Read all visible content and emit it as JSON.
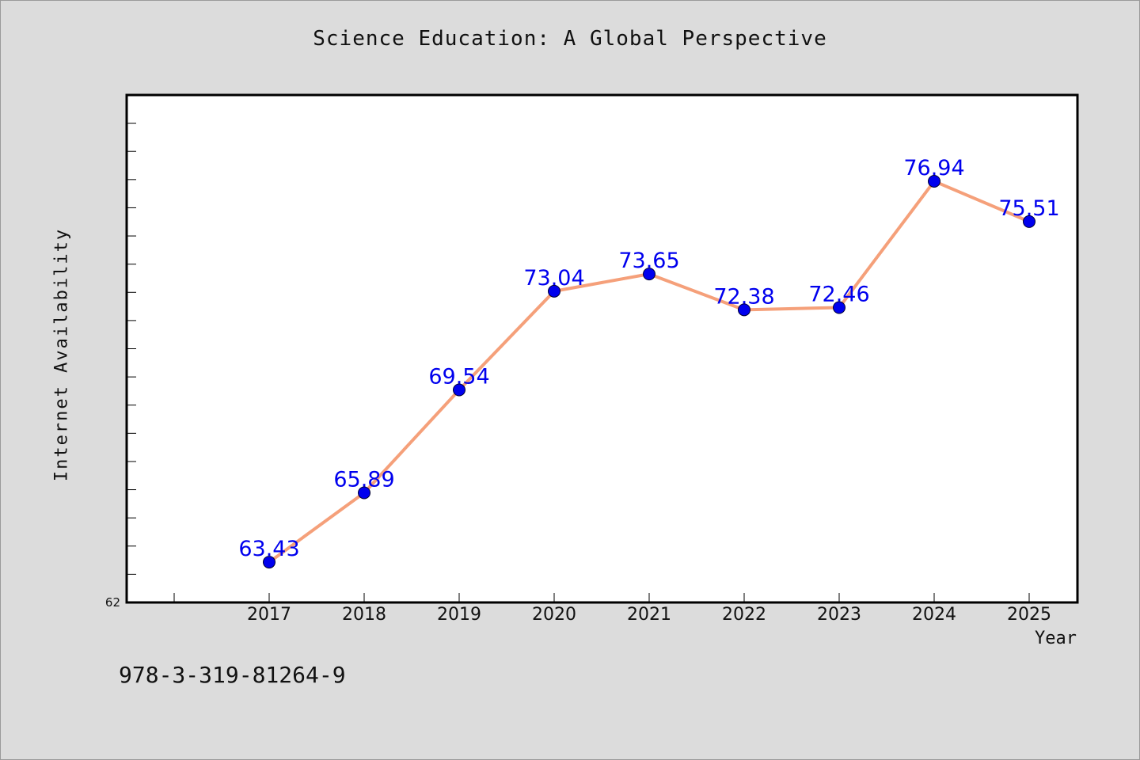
{
  "chart_data": {
    "type": "line",
    "title": "Science Education: A Global Perspective",
    "xlabel": "Year",
    "ylabel": "Internet Availability",
    "categories": [
      "2017",
      "2018",
      "2019",
      "2020",
      "2021",
      "2022",
      "2023",
      "2024",
      "2025"
    ],
    "series": [
      {
        "values": [
          63.43,
          65.89,
          69.54,
          73.04,
          73.65,
          72.38,
          72.46,
          76.94,
          75.51
        ],
        "labels": [
          "63.43",
          "65.89",
          "69.54",
          "73.04",
          "73.65",
          "72.38",
          "72.46",
          "76.94",
          "75.51"
        ]
      }
    ],
    "ylim": [
      62,
      80
    ],
    "ytick_label": "62",
    "grid": false,
    "legend": "none"
  },
  "footer": {
    "identifier": "978-3-319-81264-9"
  },
  "colors": {
    "background": "#dcdcdc",
    "plot_background": "#ffffff",
    "line": "#f5a07a",
    "marker": "#0000ee",
    "label": "#0000ee"
  }
}
